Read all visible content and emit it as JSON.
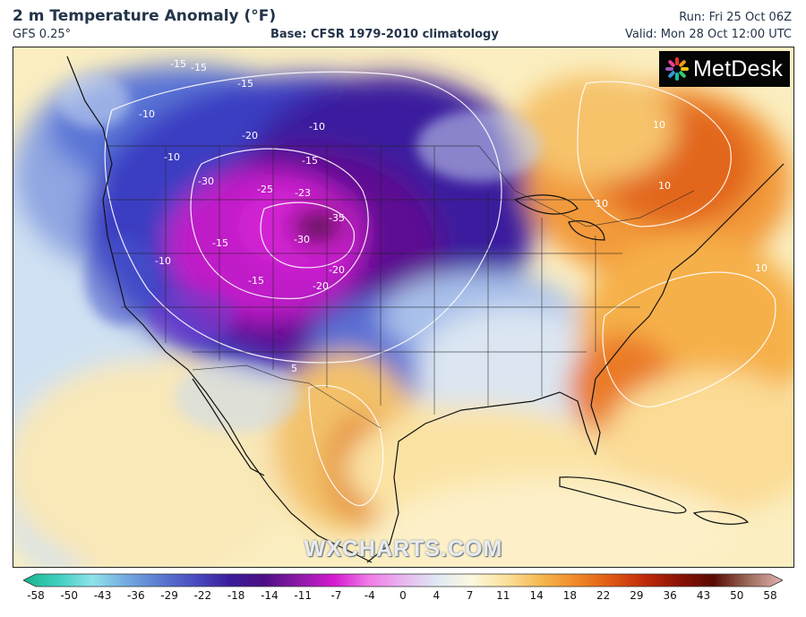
{
  "header": {
    "title": "2 m Temperature Anomaly (°F)",
    "subtitle": "GFS 0.25°",
    "base": "Base: CFSR 1979-2010 climatology",
    "run": "Run: Fri 25 Oct 06Z",
    "valid": "Valid: Mon 28 Oct 12:00 UTC"
  },
  "logo": {
    "text": "MetDesk",
    "icon": "metdesk-burst-logo"
  },
  "watermark": "WXCHARTS.COM",
  "contour_labels": [
    "-15",
    "-15",
    "-15",
    "-10",
    "-20",
    "-10",
    "-15",
    "-10",
    "-30",
    "-25",
    "-23",
    "-15",
    "-35",
    "-30",
    "-20",
    "-15",
    "-10",
    "-20",
    "10",
    "10",
    "10",
    "10",
    "5"
  ],
  "colorbar": {
    "ticks": [
      "-58",
      "-50",
      "-43",
      "-36",
      "-29",
      "-22",
      "-18",
      "-14",
      "-11",
      "-7",
      "-4",
      "0",
      "4",
      "7",
      "11",
      "14",
      "18",
      "22",
      "29",
      "36",
      "43",
      "50",
      "58"
    ],
    "colors": [
      "#16b48c",
      "#3ecfbf",
      "#8fe3ea",
      "#74a9e0",
      "#5a78d0",
      "#4a4ac0",
      "#3a1c9a",
      "#4e0e84",
      "#8c1aa8",
      "#d41ad0",
      "#f07ae8",
      "#e8b6f0",
      "#dfe9f4",
      "#fdf8df",
      "#fbe09a",
      "#f6b850",
      "#f08a28",
      "#e05a14",
      "#c02a0a",
      "#8a1206",
      "#5a0a04",
      "#9a6a5a",
      "#e6b4b4"
    ]
  }
}
